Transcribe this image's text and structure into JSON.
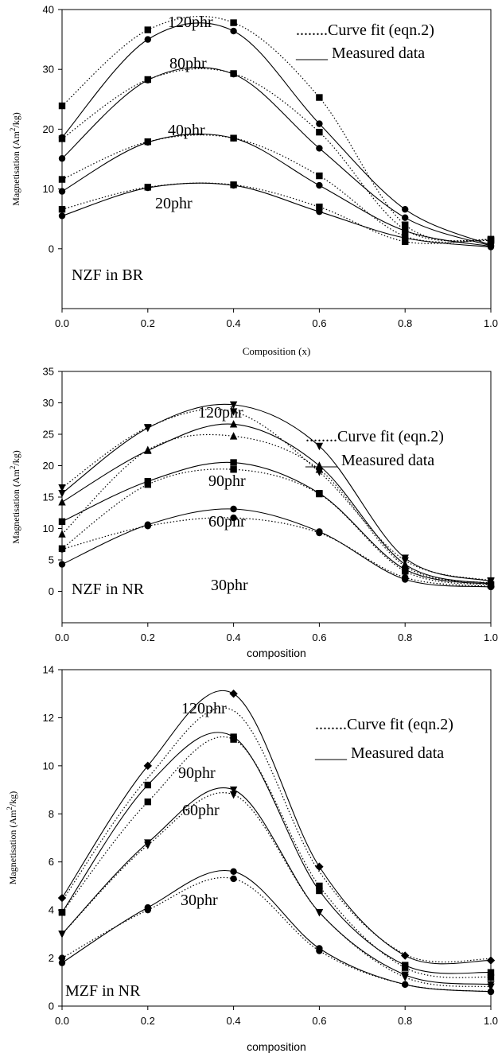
{
  "chart_data": [
    {
      "type": "line",
      "panel_label": "NZF in BR",
      "xlabel": "Composition (x)",
      "ylabel": "Magnetisation (Am",
      "ylabel_sup": "2",
      "ylabel_tail": "/kg)",
      "xlim": [
        0,
        1.0
      ],
      "ylim": [
        -10,
        40
      ],
      "xticks": [
        "0.0",
        "0.2",
        "0.4",
        "0.6",
        "0.8",
        "1.0"
      ],
      "yticks": [
        "0",
        "10",
        "20",
        "30",
        "40"
      ],
      "legend": {
        "fit": "........Curve fit (eqn.2)",
        "measured": "____ Measured data"
      },
      "x": [
        0,
        0.2,
        0.4,
        0.6,
        0.8,
        1.0
      ],
      "series": [
        {
          "label": "120phr",
          "circles": [
            18.6,
            35.0,
            36.4,
            20.9,
            6.6,
            0.6
          ],
          "squares": [
            23.9,
            36.6,
            37.8,
            25.3,
            4.0,
            1.3
          ]
        },
        {
          "label": "80phr",
          "circles": [
            15.1,
            28.2,
            29.2,
            16.8,
            5.2,
            0.5
          ],
          "squares": [
            18.4,
            28.3,
            29.3,
            19.5,
            3.2,
            1.5
          ]
        },
        {
          "label": "40phr",
          "circles": [
            9.6,
            17.8,
            18.5,
            10.6,
            3.0,
            0.4
          ],
          "squares": [
            11.6,
            17.9,
            18.5,
            12.2,
            2.1,
            1.4
          ]
        },
        {
          "label": "20phr",
          "circles": [
            5.5,
            10.2,
            10.6,
            6.2,
            1.8,
            0.3
          ],
          "squares": [
            6.6,
            10.3,
            10.7,
            7.0,
            1.2,
            1.6
          ]
        }
      ],
      "label_positions": [
        [
          0.3,
          32.2
        ],
        [
          0.33,
          25.5
        ],
        [
          0.33,
          14.8
        ],
        [
          0.25,
          6.8
        ]
      ],
      "label_values": [
        [
          "0.3",
          "32.2"
        ]
      ]
    },
    {
      "type": "line",
      "panel_label": "NZF in NR",
      "xlabel": "composition",
      "ylabel": "Magnetisation (Am",
      "ylabel_sup": "2",
      "ylabel_tail": "/kg)",
      "xlim": [
        0,
        1.0
      ],
      "ylim": [
        -5,
        35
      ],
      "xticks": [
        "0.0",
        "0.2",
        "0.4",
        "0.6",
        "0.8",
        "1.0"
      ],
      "yticks": [
        "0",
        "5",
        "10",
        "15",
        "20",
        "25",
        "30",
        "35"
      ],
      "legend": {
        "fit": "........Curve fit (eqn.2)",
        "measured": "____ Measured data"
      },
      "x": [
        0,
        0.2,
        0.4,
        0.6,
        0.8,
        1.0
      ],
      "series": [
        {
          "label": "120phr",
          "triangles_down": [
            15.6,
            26.0,
            29.7,
            23.1,
            5.3,
            1.6
          ],
          "triangles_down_fit": [
            16.5,
            26.1,
            28.6,
            19.0,
            4.9,
            1.7
          ]
        },
        {
          "label": "90phr",
          "triangles_up": [
            14.2,
            22.4,
            26.6,
            20.0,
            4.3,
            1.2
          ],
          "triangles_up_fit": [
            9.1,
            22.5,
            24.7,
            19.4,
            4.0,
            1.3
          ]
        },
        {
          "label": "60phr",
          "squares": [
            11.1,
            17.5,
            20.5,
            15.6,
            3.5,
            1.1
          ],
          "squares_fit": [
            6.8,
            17.0,
            19.4,
            15.5,
            3.2,
            1.0
          ]
        },
        {
          "label": "30phr",
          "circles": [
            4.3,
            10.6,
            13.1,
            9.5,
            1.9,
            0.7
          ],
          "circles_fit": [
            6.7,
            10.4,
            11.7,
            9.3,
            2.2,
            0.8
          ]
        }
      ],
      "label_positions": [
        [
          0.37,
          31.5
        ],
        [
          0.37,
          23.3
        ],
        [
          0.37,
          17.3
        ],
        [
          0.37,
          8.8
        ]
      ]
    },
    {
      "type": "line",
      "panel_label": "MZF in NR",
      "xlabel": "composition",
      "ylabel": "Magnetisation (Am",
      "ylabel_sup": "2",
      "ylabel_tail": "/kg)",
      "xlim": [
        0,
        1.0
      ],
      "ylim": [
        0,
        14
      ],
      "xticks": [
        "0.0",
        "0.2",
        "0.4",
        "0.6",
        "0.8",
        "1.0"
      ],
      "yticks": [
        "0",
        "2",
        "4",
        "6",
        "8",
        "10",
        "12",
        "14"
      ],
      "legend": {
        "fit": "........Curve fit (eqn.2)",
        "measured": "____ Measured data"
      },
      "x": [
        0,
        0.2,
        0.4,
        0.6,
        0.8,
        1.0
      ],
      "series": [
        {
          "label": "120phr",
          "diamonds": [
            4.5,
            10.0,
            13.0,
            5.8,
            2.1,
            1.9
          ]
        },
        {
          "label": "90phr",
          "squares": [
            3.9,
            9.2,
            11.2,
            4.8,
            1.7,
            1.4
          ],
          "squares_fit": [
            3.9,
            8.5,
            11.1,
            5.0,
            1.6,
            1.2
          ]
        },
        {
          "label": "60phr",
          "triangles_down": [
            3.0,
            6.8,
            9.0,
            3.9,
            1.3,
            0.9
          ],
          "triangles_down_fit": [
            3.0,
            6.7,
            8.8,
            3.9,
            1.2,
            0.8
          ]
        },
        {
          "label": "30phr",
          "circles": [
            1.8,
            4.1,
            5.6,
            2.4,
            0.9,
            0.6
          ],
          "circles_fit": [
            2.0,
            4.0,
            5.3,
            2.3,
            0.9,
            0.6
          ]
        }
      ],
      "label_positions": [
        [
          0.3,
          12.5
        ],
        [
          0.3,
          8.9
        ],
        [
          0.3,
          6.3
        ],
        [
          0.3,
          3.0
        ]
      ]
    }
  ]
}
